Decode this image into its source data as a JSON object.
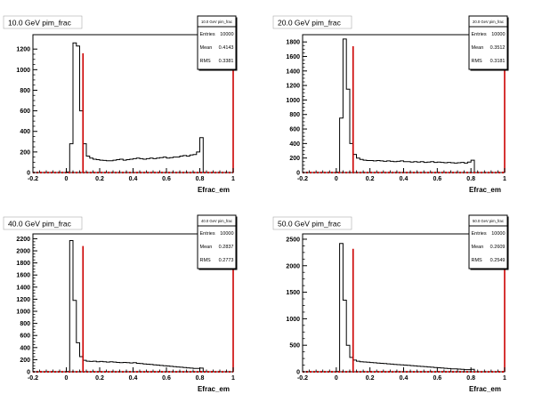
{
  "colors": {
    "histogram": "#000000",
    "cut_line": "#cc0000",
    "background": "#ffffff"
  },
  "chart_data": [
    {
      "type": "histogram",
      "title": "10.0 GeV pim_frac",
      "stats": {
        "name": "10.0 GeV pim_frac",
        "rows": [
          [
            "Entries",
            "10000"
          ],
          [
            "Mean",
            "0.4143"
          ],
          [
            "RMS",
            "0.3381"
          ]
        ]
      },
      "xlabel": "Efrac_em",
      "xlim": [
        -0.2,
        1.0
      ],
      "ylim": [
        0,
        1340
      ],
      "xticks": [
        -0.2,
        0,
        0.2,
        0.4,
        0.6,
        0.8,
        1
      ],
      "xtick_labels": [
        "-0.2",
        "0",
        "0.2",
        "0.4",
        "0.6",
        "0.8",
        "1"
      ],
      "yticks": [
        0,
        200,
        400,
        600,
        800,
        1000,
        1200
      ],
      "ytick_labels": [
        "0",
        "200",
        "400",
        "600",
        "800",
        "1000",
        "1200"
      ],
      "bin_width": 0.02,
      "bin_start": -0.2,
      "values": [
        0,
        0,
        0,
        0,
        0,
        0,
        0,
        0,
        0,
        0,
        5,
        280,
        1260,
        1230,
        600,
        280,
        160,
        140,
        130,
        125,
        120,
        118,
        115,
        115,
        120,
        125,
        130,
        120,
        125,
        130,
        135,
        140,
        135,
        130,
        135,
        140,
        135,
        140,
        145,
        150,
        140,
        145,
        150,
        150,
        160,
        165,
        160,
        170,
        175,
        200,
        340,
        0,
        0,
        0,
        0,
        0,
        0,
        0,
        0,
        0
      ],
      "cut_x": 0.1,
      "cut_top": 1160
    },
    {
      "type": "histogram",
      "title": "20.0 GeV pim_frac",
      "stats": {
        "name": "20.0 GeV pim_frac",
        "rows": [
          [
            "Entries",
            "10000"
          ],
          [
            "Mean",
            "0.3512"
          ],
          [
            "RMS",
            "0.3181"
          ]
        ]
      },
      "xlabel": "Efrac_em",
      "xlim": [
        -0.2,
        1.0
      ],
      "ylim": [
        0,
        1900
      ],
      "xticks": [
        -0.2,
        0,
        0.2,
        0.4,
        0.6,
        0.8,
        1
      ],
      "xtick_labels": [
        "-0.2",
        "0",
        "0.2",
        "0.4",
        "0.6",
        "0.8",
        "1"
      ],
      "yticks": [
        0,
        200,
        400,
        600,
        800,
        1000,
        1200,
        1400,
        1600,
        1800
      ],
      "ytick_labels": [
        "0",
        "200",
        "400",
        "600",
        "800",
        "1000",
        "1200",
        "1400",
        "1600",
        "1800"
      ],
      "bin_width": 0.02,
      "bin_start": -0.2,
      "values": [
        0,
        0,
        0,
        0,
        0,
        0,
        0,
        0,
        0,
        0,
        5,
        750,
        1840,
        1150,
        400,
        250,
        200,
        180,
        170,
        165,
        165,
        160,
        165,
        160,
        155,
        160,
        155,
        150,
        155,
        160,
        150,
        150,
        145,
        150,
        145,
        150,
        140,
        145,
        150,
        140,
        145,
        140,
        135,
        140,
        135,
        130,
        135,
        140,
        130,
        145,
        170,
        0,
        0,
        0,
        0,
        0,
        0,
        0,
        0,
        0
      ],
      "cut_x": 0.1,
      "cut_top": 1740
    },
    {
      "type": "histogram",
      "title": "40.0 GeV pim_frac",
      "stats": {
        "name": "40.0 GeV pim_frac",
        "rows": [
          [
            "Entries",
            "10000"
          ],
          [
            "Mean",
            "0.2837"
          ],
          [
            "RMS",
            "0.2773"
          ]
        ]
      },
      "xlabel": "Efrac_em",
      "xlim": [
        -0.2,
        1.0
      ],
      "ylim": [
        0,
        2280
      ],
      "xticks": [
        -0.2,
        0,
        0.2,
        0.4,
        0.6,
        0.8,
        1
      ],
      "xtick_labels": [
        "-0.2",
        "0",
        "0.2",
        "0.4",
        "0.6",
        "0.8",
        "1"
      ],
      "yticks": [
        0,
        200,
        400,
        600,
        800,
        1000,
        1200,
        1400,
        1600,
        1800,
        2000,
        2200
      ],
      "ytick_labels": [
        "0",
        "200",
        "400",
        "600",
        "800",
        "1000",
        "1200",
        "1400",
        "1600",
        "1800",
        "2000",
        "2200"
      ],
      "bin_width": 0.02,
      "bin_start": -0.2,
      "values": [
        0,
        0,
        0,
        0,
        0,
        0,
        0,
        0,
        0,
        0,
        5,
        2170,
        1180,
        480,
        250,
        190,
        175,
        170,
        175,
        165,
        170,
        165,
        160,
        165,
        160,
        155,
        150,
        155,
        150,
        145,
        150,
        140,
        135,
        130,
        125,
        120,
        115,
        110,
        105,
        100,
        95,
        90,
        85,
        80,
        75,
        70,
        65,
        60,
        55,
        55,
        60,
        0,
        0,
        0,
        0,
        0,
        0,
        0,
        0,
        0
      ],
      "cut_x": 0.1,
      "cut_top": 2080
    },
    {
      "type": "histogram",
      "title": "50.0 GeV pim_frac",
      "stats": {
        "name": "50.0 GeV pim_frac",
        "rows": [
          [
            "Entries",
            "10000"
          ],
          [
            "Mean",
            "0.2609"
          ],
          [
            "RMS",
            "0.2549"
          ]
        ]
      },
      "xlabel": "Efrac_em",
      "xlim": [
        -0.2,
        1.0
      ],
      "ylim": [
        0,
        2600
      ],
      "xticks": [
        -0.2,
        0,
        0.2,
        0.4,
        0.6,
        0.8,
        1
      ],
      "xtick_labels": [
        "-0.2",
        "0",
        "0.2",
        "0.4",
        "0.6",
        "0.8",
        "1"
      ],
      "yticks": [
        0,
        500,
        1000,
        1500,
        2000,
        2500
      ],
      "ytick_labels": [
        "0",
        "500",
        "1000",
        "1500",
        "2000",
        "2500"
      ],
      "bin_width": 0.02,
      "bin_start": -0.2,
      "values": [
        0,
        0,
        0,
        0,
        0,
        0,
        0,
        0,
        0,
        0,
        5,
        2420,
        1350,
        500,
        270,
        220,
        200,
        190,
        185,
        180,
        175,
        170,
        165,
        160,
        155,
        150,
        145,
        140,
        135,
        130,
        125,
        120,
        115,
        110,
        105,
        100,
        95,
        90,
        85,
        80,
        75,
        70,
        65,
        60,
        55,
        55,
        50,
        45,
        40,
        40,
        45,
        0,
        0,
        0,
        0,
        0,
        0,
        0,
        0,
        0
      ],
      "cut_x": 0.1,
      "cut_top": 2320
    }
  ]
}
